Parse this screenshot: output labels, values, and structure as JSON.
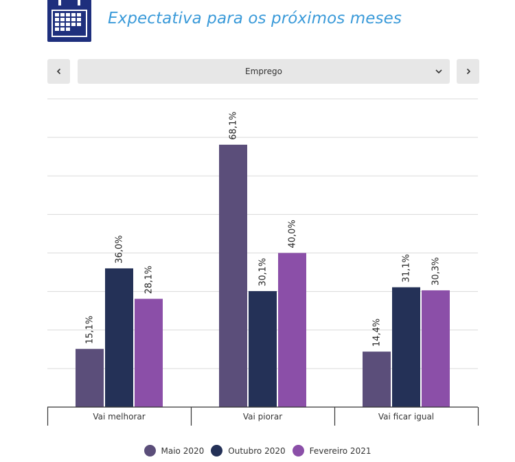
{
  "header": {
    "title": "Expectativa para os próximos meses",
    "icon": "calendar-icon",
    "icon_color": "#1e2f7d",
    "title_color": "#3a9ad9"
  },
  "selector": {
    "value": "Emprego",
    "prev_icon": "chevron-left-icon",
    "next_icon": "chevron-right-icon",
    "dropdown_icon": "chevron-down-icon"
  },
  "chart_data": {
    "type": "bar",
    "categories": [
      "Vai melhorar",
      "Vai piorar",
      "Vai ficar igual"
    ],
    "series": [
      {
        "name": "Maio 2020",
        "color": "#5b4e7a",
        "values": [
          15.1,
          68.1,
          14.4
        ],
        "labels": [
          "15,1%",
          "68,1%",
          "14,4%"
        ]
      },
      {
        "name": "Outubro 2020",
        "color": "#243157",
        "values": [
          36.0,
          30.1,
          31.1
        ],
        "labels": [
          "36,0%",
          "30,1%",
          "31,1%"
        ]
      },
      {
        "name": "Fevereiro 2021",
        "color": "#8b4fa8",
        "values": [
          28.1,
          40.0,
          30.3
        ],
        "labels": [
          "28,1%",
          "40,0%",
          "30,3%"
        ]
      }
    ],
    "ylim": [
      0,
      80
    ],
    "grid": true,
    "legend_position": "bottom"
  }
}
